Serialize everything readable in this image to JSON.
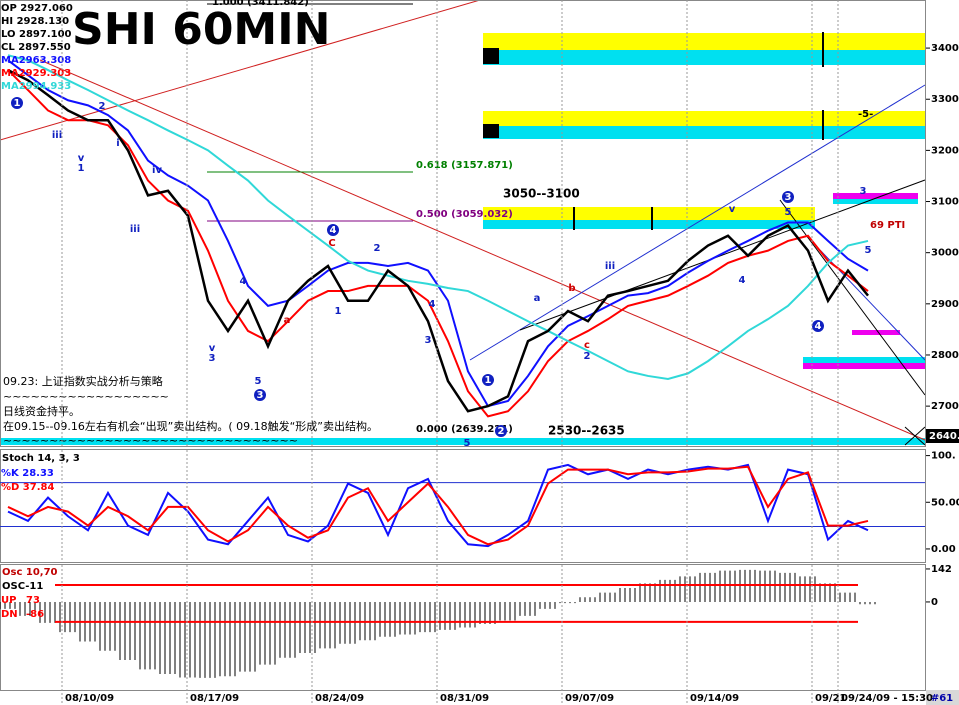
{
  "chart_data": [
    {
      "type": "line",
      "title": "SHI 60MIN",
      "ohlc_labels": [
        "OP 2927.060",
        "HI 2928.130",
        "LO 2897.100",
        "CL 2897.550"
      ],
      "series": [
        {
          "name": "MA2963.308",
          "color": "#1010ff",
          "values": [
            3376,
            3347,
            3318,
            3298,
            3288,
            3269,
            3239,
            3180,
            3151,
            3131,
            3102,
            3023,
            2935,
            2896,
            2906,
            2935,
            2965,
            2980,
            2980,
            2974,
            2980,
            2965,
            2906,
            2768,
            2700,
            2710,
            2759,
            2817,
            2857,
            2876,
            2896,
            2916,
            2921,
            2935,
            2961,
            2984,
            3004,
            3023,
            3043,
            3059,
            3059,
            3023,
            2988,
            2965
          ]
        },
        {
          "name": "MA2929.303",
          "color": "#ff0000",
          "values": [
            3357,
            3318,
            3278,
            3259,
            3259,
            3249,
            3210,
            3141,
            3102,
            3082,
            3004,
            2906,
            2847,
            2827,
            2866,
            2906,
            2925,
            2925,
            2935,
            2935,
            2935,
            2906,
            2827,
            2729,
            2680,
            2690,
            2729,
            2788,
            2827,
            2847,
            2870,
            2896,
            2906,
            2916,
            2935,
            2955,
            2980,
            2994,
            3004,
            3023,
            3033,
            2984,
            2955,
            2925
          ]
        },
        {
          "name": "MA2994.933",
          "color": "#30d8d8",
          "values": [
            3386,
            3376,
            3357,
            3337,
            3318,
            3298,
            3278,
            3259,
            3239,
            3220,
            3200,
            3170,
            3141,
            3102,
            3072,
            3043,
            3014,
            2984,
            2965,
            2955,
            2945,
            2939,
            2931,
            2925,
            2906,
            2886,
            2866,
            2847,
            2827,
            2808,
            2788,
            2768,
            2759,
            2753,
            2764,
            2788,
            2817,
            2847,
            2870,
            2896,
            2935,
            2980,
            3014,
            3023
          ]
        }
      ],
      "close": {
        "color": "#000000",
        "values": [
          3357,
          3337,
          3308,
          3278,
          3259,
          3259,
          3200,
          3112,
          3121,
          3072,
          2906,
          2847,
          2906,
          2817,
          2906,
          2945,
          2974,
          2906,
          2906,
          2965,
          2935,
          2866,
          2749,
          2690,
          2700,
          2719,
          2827,
          2847,
          2886,
          2866,
          2916,
          2925,
          2935,
          2945,
          2984,
          3014,
          3033,
          2994,
          3033,
          3053,
          3004,
          2906,
          2965,
          2916
        ]
      },
      "ylim": [
        2624,
        3494
      ],
      "yticks": [
        {
          "value": 3400,
          "label": "3400."
        },
        {
          "value": 3300,
          "label": "3300."
        },
        {
          "value": 3200,
          "label": "3200."
        },
        {
          "value": 3100,
          "label": "3100."
        },
        {
          "value": 3000,
          "label": "3000."
        },
        {
          "value": 2900,
          "label": "2900."
        },
        {
          "value": 2800,
          "label": "2800."
        },
        {
          "value": 2700,
          "label": "2700."
        }
      ],
      "last_price_label": "2640.",
      "annotations": [
        "1.000 (3411.842)",
        "0.618 (3157.871)",
        "0.500 (3059.032)",
        "0.000 (2639.221)",
        "3050--3100",
        "2530--2635",
        "-5-",
        "69 PTI"
      ],
      "notes": [
        "09.23: 上证指数实战分析与策略",
        "~~~~~~~~~~~~~~~~~~",
        "日线资金持平。",
        "在09.15--09.16左右有机会“出现”卖出结构。( 09.18触发“形成”卖出结构。",
        "~~~~~~~~~~~~~~~~~~~~~~~~~~~~~~~~"
      ],
      "wave_labels": [
        "1",
        "2",
        "iii",
        "v",
        "1",
        "i",
        "iv",
        "iii",
        "3",
        "v",
        "3",
        "5",
        "4",
        "a",
        "C",
        "4",
        "2",
        "1",
        "4",
        "3",
        "5",
        "1",
        "2",
        "b",
        "a",
        "c",
        "2",
        "iii",
        "3",
        "v",
        "5",
        "3",
        "4",
        "4",
        "5"
      ],
      "xticks": [
        {
          "value": 3.1,
          "label": "08/10/09"
        },
        {
          "value": 9.35,
          "label": "08/17/09"
        },
        {
          "value": 15.6,
          "label": "08/24/09"
        },
        {
          "value": 21.85,
          "label": "08/31/09"
        },
        {
          "value": 28.1,
          "label": "09/07/09"
        },
        {
          "value": 34.35,
          "label": "09/14/09"
        },
        {
          "value": 40.6,
          "label": "09/21"
        },
        {
          "value": 41.9,
          "label": "09/24/09 - 15:30"
        }
      ],
      "corner_label": "#61"
    },
    {
      "type": "line",
      "title": "Stoch 14, 3, 3",
      "series": [
        {
          "name": "%K  28.33",
          "color": "#1010ff",
          "values": [
            40,
            30,
            55,
            35,
            20,
            60,
            25,
            15,
            60,
            40,
            10,
            5,
            30,
            55,
            15,
            8,
            25,
            70,
            60,
            15,
            65,
            75,
            30,
            5,
            3,
            15,
            30,
            85,
            90,
            80,
            85,
            75,
            85,
            80,
            85,
            88,
            85,
            90,
            30,
            85,
            80,
            10,
            30,
            20
          ]
        },
        {
          "name": "%D  37.84",
          "color": "#ff0000",
          "values": [
            45,
            35,
            45,
            40,
            25,
            45,
            35,
            20,
            45,
            45,
            20,
            8,
            20,
            45,
            25,
            12,
            20,
            55,
            65,
            30,
            50,
            70,
            45,
            15,
            5,
            10,
            25,
            70,
            85,
            85,
            85,
            80,
            82,
            82,
            83,
            86,
            86,
            88,
            45,
            75,
            82,
            25,
            25,
            30
          ]
        }
      ],
      "levels": [
        71,
        24
      ],
      "ylim": [
        -14,
        106
      ],
      "yticks": [
        {
          "value": 100,
          "label": "100."
        },
        {
          "value": 50,
          "label": "50.00"
        },
        {
          "value": 0,
          "label": "0.00"
        }
      ]
    },
    {
      "type": "bar",
      "title": "Osc 10,70",
      "subtitle": "OSC-11",
      "values": [
        -30,
        -60,
        -90,
        -130,
        -170,
        -210,
        -250,
        -290,
        -310,
        -325,
        -327,
        -320,
        -300,
        -270,
        -240,
        -220,
        -200,
        -180,
        -165,
        -150,
        -140,
        -130,
        -120,
        -110,
        -95,
        -80,
        -60,
        -30,
        -5,
        20,
        40,
        60,
        80,
        95,
        110,
        125,
        135,
        138,
        135,
        125,
        110,
        80,
        40,
        -10
      ],
      "color": "#000000",
      "bands": [
        {
          "name": "UP",
          "value": 73,
          "color": "#ff0000"
        },
        {
          "name": "DN",
          "value": -86,
          "color": "#ff0000"
        }
      ],
      "ylim": [
        -379,
        159
      ],
      "yticks": [
        142,
        0
      ]
    }
  ]
}
